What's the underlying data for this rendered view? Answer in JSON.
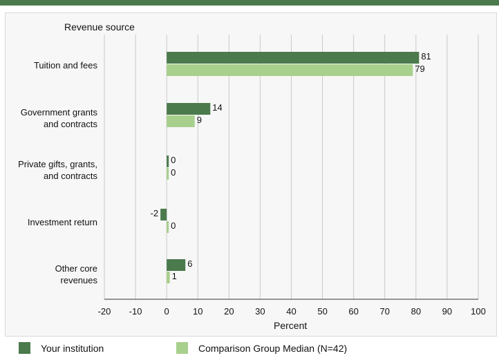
{
  "colors": {
    "series1": "#4b7a4c",
    "series2": "#a8d08d",
    "grid": "#c9c9c9",
    "axis": "#333333"
  },
  "chart_data": {
    "type": "bar",
    "orientation": "horizontal",
    "ylabel": "Revenue source",
    "xlabel": "Percent",
    "xlim": [
      -20,
      100
    ],
    "xticks": [
      -20,
      -10,
      0,
      10,
      20,
      30,
      40,
      50,
      60,
      70,
      80,
      90,
      100
    ],
    "grid": true,
    "legend_position": "bottom",
    "categories": [
      "Tuition and fees",
      "Government grants\nand contracts",
      "Private gifts, grants,\nand contracts",
      "Investment return",
      "Other core\nrevenues"
    ],
    "series": [
      {
        "name": "Your institution",
        "values": [
          81,
          14,
          0,
          -2,
          6
        ]
      },
      {
        "name": "Comparison Group Median (N=42)",
        "values": [
          79,
          9,
          0,
          0,
          1
        ]
      }
    ]
  }
}
